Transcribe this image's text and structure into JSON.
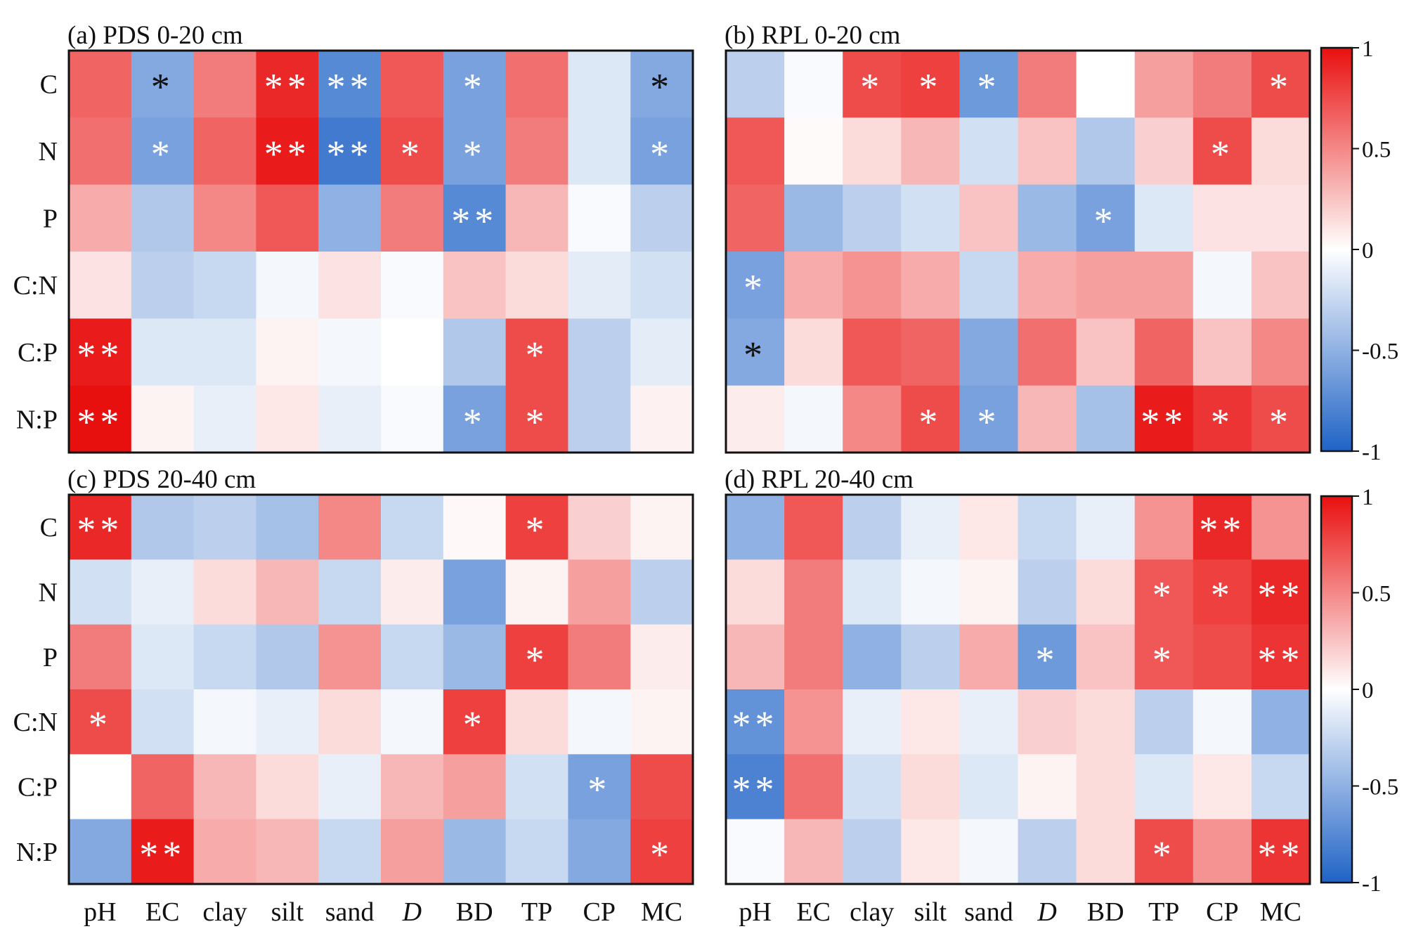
{
  "chart_data": [
    {
      "type": "heatmap",
      "title": "(a) PDS 0-20 cm",
      "rows": [
        "C",
        "N",
        "P",
        "C:N",
        "C:P",
        "N:P"
      ],
      "columns": [
        "pH",
        "EC",
        "clay",
        "silt",
        "sand",
        "D",
        "BD",
        "TP",
        "CP",
        "MC"
      ],
      "values": [
        [
          0.65,
          -0.55,
          0.55,
          0.9,
          -0.75,
          0.7,
          -0.6,
          0.6,
          -0.15,
          -0.55
        ],
        [
          0.6,
          -0.6,
          0.65,
          0.95,
          -0.85,
          0.75,
          -0.6,
          0.55,
          -0.15,
          -0.6
        ],
        [
          0.35,
          -0.35,
          0.5,
          0.7,
          -0.5,
          0.55,
          -0.75,
          0.3,
          -0.03,
          -0.3
        ],
        [
          0.12,
          -0.3,
          -0.25,
          -0.05,
          0.12,
          -0.03,
          0.25,
          0.15,
          -0.12,
          -0.2
        ],
        [
          0.95,
          -0.15,
          -0.15,
          0.05,
          -0.05,
          0.0,
          -0.35,
          0.75,
          -0.3,
          -0.12
        ],
        [
          1.0,
          0.05,
          -0.1,
          0.1,
          -0.1,
          -0.03,
          -0.6,
          0.75,
          -0.3,
          0.06
        ]
      ],
      "stars": [
        [
          "",
          "*",
          "",
          "**",
          "**",
          "",
          "*",
          "",
          "",
          "*"
        ],
        [
          "",
          "*",
          "",
          "**",
          "**",
          "*",
          "*",
          "",
          "",
          "*"
        ],
        [
          "",
          "",
          "",
          "",
          "",
          "",
          "**",
          "",
          "",
          ""
        ],
        [
          "",
          "",
          "",
          "",
          "",
          "",
          "",
          "",
          "",
          ""
        ],
        [
          "**",
          "",
          "",
          "",
          "",
          "",
          "",
          "*",
          "",
          ""
        ],
        [
          "**",
          "",
          "",
          "",
          "",
          "",
          "*",
          "*",
          "",
          ""
        ]
      ],
      "colorbar": false
    },
    {
      "type": "heatmap",
      "title": "(b) RPL 0-20 cm",
      "rows": [
        "C",
        "N",
        "P",
        "C:N",
        "C:P",
        "N:P"
      ],
      "columns": [
        "pH",
        "EC",
        "clay",
        "silt",
        "sand",
        "D",
        "BD",
        "TP",
        "CP",
        "MC"
      ],
      "values": [
        [
          -0.3,
          -0.03,
          0.75,
          0.8,
          -0.65,
          0.55,
          0.0,
          0.4,
          0.55,
          0.75
        ],
        [
          0.7,
          0.02,
          0.15,
          0.3,
          -0.2,
          0.25,
          -0.35,
          0.2,
          0.75,
          0.15
        ],
        [
          0.65,
          -0.45,
          -0.3,
          -0.2,
          0.25,
          -0.45,
          -0.6,
          -0.15,
          0.12,
          0.12
        ],
        [
          -0.6,
          0.35,
          0.45,
          0.35,
          -0.25,
          0.35,
          0.4,
          0.4,
          -0.05,
          0.25
        ],
        [
          -0.55,
          0.15,
          0.7,
          0.65,
          -0.55,
          0.6,
          0.25,
          0.65,
          0.25,
          0.5
        ],
        [
          0.08,
          -0.05,
          0.5,
          0.75,
          -0.6,
          0.3,
          -0.4,
          0.95,
          0.85,
          0.75
        ]
      ],
      "stars": [
        [
          "",
          "",
          "*",
          "*",
          "*",
          "",
          "",
          "",
          "",
          "*"
        ],
        [
          "",
          "",
          "",
          "",
          "",
          "",
          "",
          "",
          "*",
          ""
        ],
        [
          "",
          "",
          "",
          "",
          "",
          "",
          "*",
          "",
          "",
          ""
        ],
        [
          "*",
          "",
          "",
          "",
          "",
          "",
          "",
          "",
          "",
          ""
        ],
        [
          "*",
          "",
          "",
          "",
          "",
          "",
          "",
          "",
          "",
          ""
        ],
        [
          "",
          "",
          "",
          "*",
          "*",
          "",
          "",
          "**",
          "*",
          "*"
        ]
      ],
      "colorbar": true,
      "colorbar_ticks": [
        "1",
        "0.5",
        "0",
        "-0.5",
        "-1"
      ]
    },
    {
      "type": "heatmap",
      "title": "(c) PDS 20-40 cm",
      "rows": [
        "C",
        "N",
        "P",
        "C:N",
        "C:P",
        "N:P"
      ],
      "columns": [
        "pH",
        "EC",
        "clay",
        "silt",
        "sand",
        "D",
        "BD",
        "TP",
        "CP",
        "MC"
      ],
      "values": [
        [
          0.9,
          -0.35,
          -0.3,
          -0.4,
          0.5,
          -0.25,
          0.03,
          0.8,
          0.2,
          0.05
        ],
        [
          -0.2,
          -0.1,
          0.15,
          0.3,
          -0.25,
          0.08,
          -0.6,
          0.05,
          0.4,
          -0.3
        ],
        [
          0.55,
          -0.15,
          -0.25,
          -0.35,
          0.45,
          -0.25,
          -0.45,
          0.8,
          0.55,
          0.08
        ],
        [
          0.75,
          -0.2,
          -0.05,
          -0.1,
          0.15,
          -0.05,
          0.8,
          0.15,
          -0.05,
          0.05
        ],
        [
          0.0,
          0.65,
          0.3,
          0.15,
          -0.1,
          0.3,
          0.4,
          -0.2,
          -0.6,
          0.75
        ],
        [
          -0.55,
          0.95,
          0.35,
          0.3,
          -0.25,
          0.4,
          -0.45,
          -0.25,
          -0.55,
          0.8
        ]
      ],
      "stars": [
        [
          "**",
          "",
          "",
          "",
          "",
          "",
          "",
          "*",
          "",
          ""
        ],
        [
          "",
          "",
          "",
          "",
          "",
          "",
          "",
          "",
          "",
          ""
        ],
        [
          "",
          "",
          "",
          "",
          "",
          "",
          "",
          "*",
          "",
          ""
        ],
        [
          "*",
          "",
          "",
          "",
          "",
          "",
          "*",
          "",
          "",
          ""
        ],
        [
          "",
          "",
          "",
          "",
          "",
          "",
          "",
          "",
          "*",
          ""
        ],
        [
          "",
          "**",
          "",
          "",
          "",
          "",
          "",
          "",
          "",
          "*"
        ]
      ],
      "colorbar": false
    },
    {
      "type": "heatmap",
      "title": "(d) RPL 20-40 cm",
      "rows": [
        "C",
        "N",
        "P",
        "C:N",
        "C:P",
        "N:P"
      ],
      "columns": [
        "pH",
        "EC",
        "clay",
        "silt",
        "sand",
        "D",
        "BD",
        "TP",
        "CP",
        "MC"
      ],
      "values": [
        [
          -0.5,
          0.7,
          -0.3,
          -0.1,
          0.1,
          -0.25,
          -0.1,
          0.45,
          0.9,
          0.45
        ],
        [
          0.15,
          0.55,
          -0.15,
          -0.05,
          0.05,
          -0.3,
          0.15,
          0.7,
          0.8,
          0.9
        ],
        [
          0.3,
          0.55,
          -0.5,
          -0.3,
          0.35,
          -0.65,
          0.25,
          0.7,
          0.75,
          0.85
        ],
        [
          -0.7,
          0.45,
          -0.1,
          0.1,
          -0.1,
          0.2,
          0.15,
          -0.3,
          -0.05,
          -0.5
        ],
        [
          -0.8,
          0.6,
          -0.2,
          0.15,
          -0.15,
          0.05,
          0.15,
          -0.15,
          0.1,
          -0.25
        ],
        [
          -0.03,
          0.3,
          -0.3,
          0.1,
          -0.05,
          -0.3,
          0.15,
          0.75,
          0.45,
          0.85
        ]
      ],
      "stars": [
        [
          "",
          "",
          "",
          "",
          "",
          "",
          "",
          "",
          "**",
          ""
        ],
        [
          "",
          "",
          "",
          "",
          "",
          "",
          "",
          "*",
          "*",
          "**"
        ],
        [
          "",
          "",
          "",
          "",
          "",
          "*",
          "",
          "*",
          "",
          "**"
        ],
        [
          "**",
          "",
          "",
          "",
          "",
          "",
          "",
          "",
          "",
          ""
        ],
        [
          "**",
          "",
          "",
          "",
          "",
          "",
          "",
          "",
          "",
          ""
        ],
        [
          "",
          "",
          "",
          "",
          "",
          "",
          "",
          "*",
          "",
          "**"
        ]
      ],
      "colorbar": true,
      "colorbar_ticks": [
        "1",
        "0.5",
        "0",
        "-0.5",
        "-1"
      ]
    }
  ],
  "colors": {
    "positive": "#e8100f",
    "negative": "#1f63c6",
    "zero": "#ffffff",
    "frame": "#111111"
  },
  "star_dark_threshold": 0.6
}
